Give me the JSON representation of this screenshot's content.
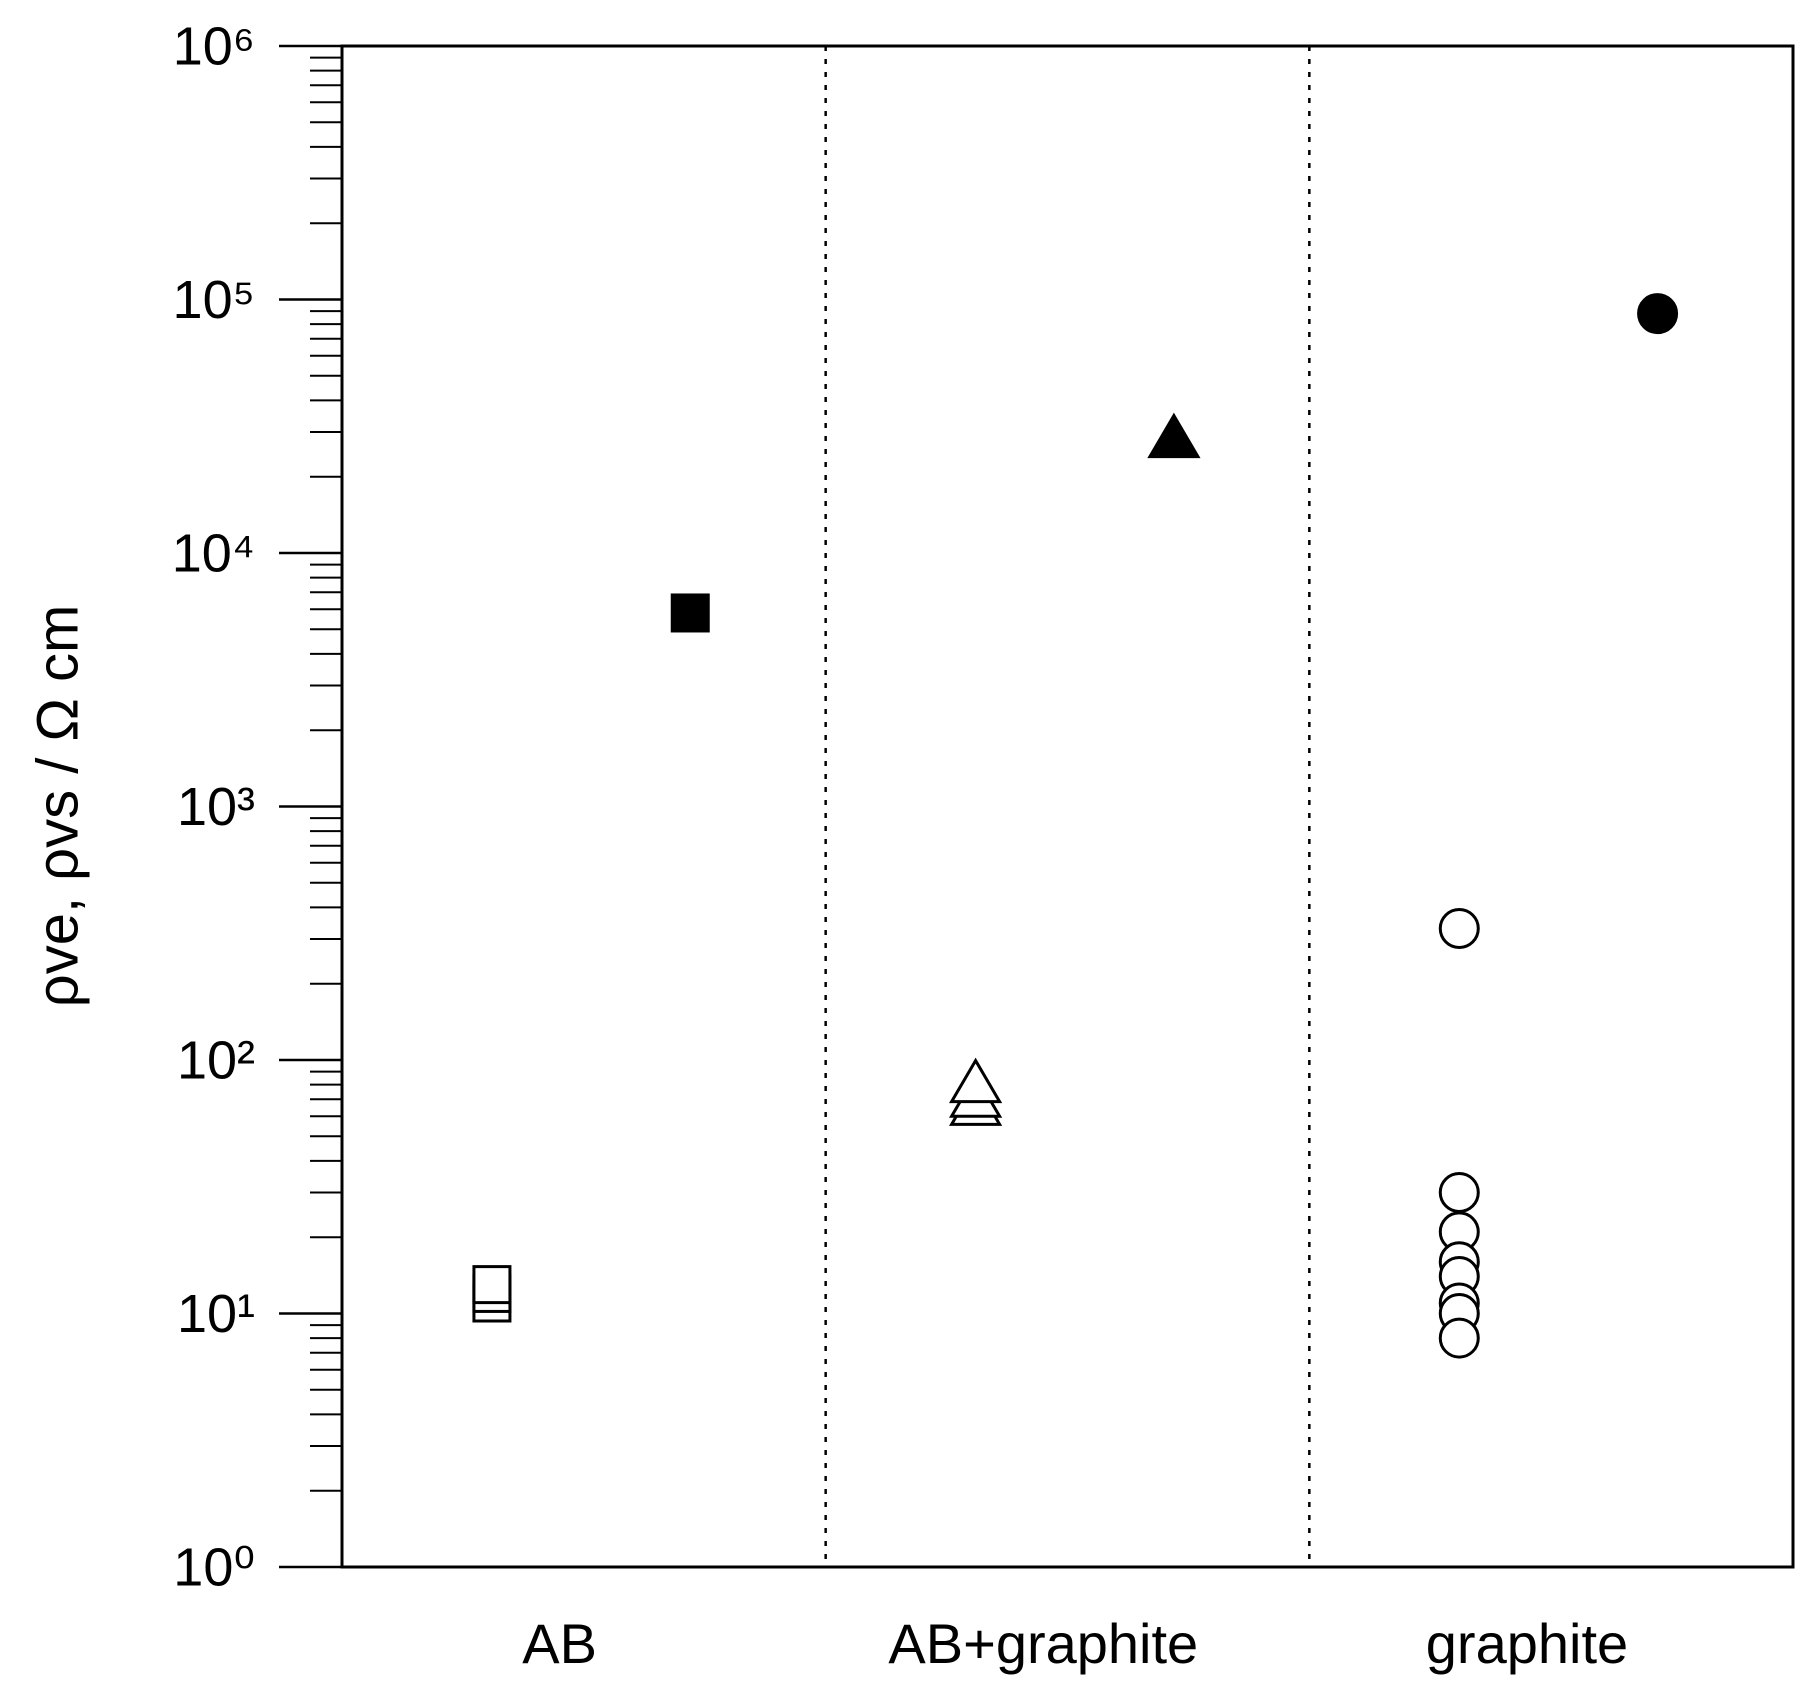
{
  "chart_data": {
    "type": "scatter",
    "y_label": "ρve, ρvs / Ω cm",
    "y_log": true,
    "minor_ticks": true,
    "ylim": [
      1,
      1000000
    ],
    "yticks": [
      {
        "value": 1,
        "label": "10⁰"
      },
      {
        "value": 10,
        "label": "10¹"
      },
      {
        "value": 100,
        "label": "10²"
      },
      {
        "value": 1000,
        "label": "10³"
      },
      {
        "value": 10000,
        "label": "10⁴"
      },
      {
        "value": 100000,
        "label": "10⁵"
      },
      {
        "value": 1000000,
        "label": "10⁶"
      }
    ],
    "color": "#000000",
    "groups": [
      {
        "category": "AB",
        "marker": "square",
        "open": [
          11,
          12,
          13
        ],
        "filled": [
          5800
        ]
      },
      {
        "category": "AB+graphite",
        "marker": "triangle",
        "open": [
          65,
          70,
          80
        ],
        "filled": [
          28000
        ]
      },
      {
        "category": "graphite",
        "marker": "circle",
        "open": [
          330,
          30,
          21,
          16,
          14,
          11,
          10,
          8
        ],
        "filled": [
          88000
        ]
      }
    ]
  }
}
